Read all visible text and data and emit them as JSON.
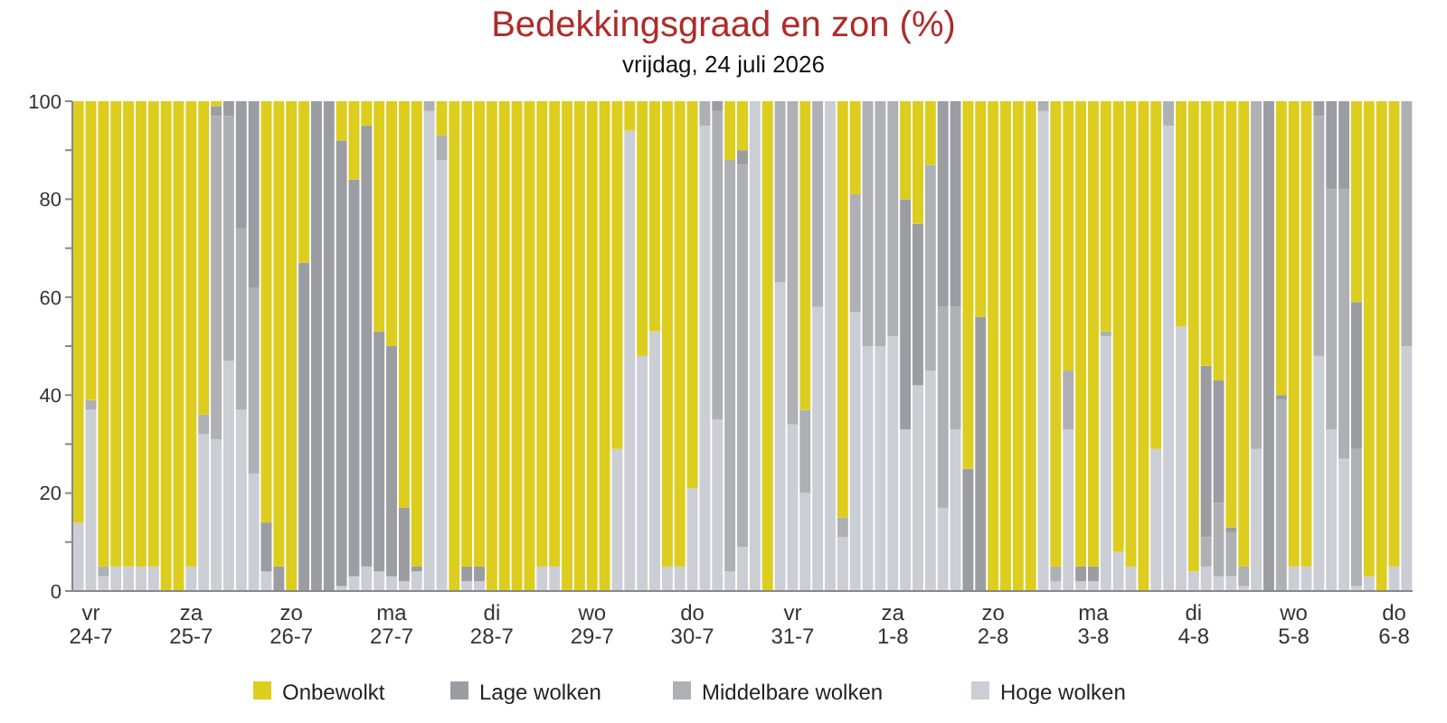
{
  "chart_data": {
    "type": "bar",
    "stacked": true,
    "title": "Bedekkingsgraad en zon (%)",
    "subtitle": "vrijdag, 24 juli 2026",
    "categories": [
      null,
      "vr 24-7",
      null,
      null,
      null,
      null,
      null,
      null,
      null,
      "za 25-7",
      null,
      null,
      null,
      null,
      null,
      null,
      null,
      "zo 26-7",
      null,
      null,
      null,
      null,
      null,
      null,
      null,
      "ma 27-7",
      null,
      null,
      null,
      null,
      null,
      null,
      null,
      "di 28-7",
      null,
      null,
      null,
      null,
      null,
      null,
      null,
      "wo 29-7",
      null,
      null,
      null,
      null,
      null,
      null,
      null,
      "do 30-7",
      null,
      null,
      null,
      null,
      null,
      null,
      null,
      "vr 31-7",
      null,
      null,
      null,
      null,
      null,
      null,
      null,
      "za 1-8",
      null,
      null,
      null,
      null,
      null,
      null,
      null,
      "zo 2-8",
      null,
      null,
      null,
      null,
      null,
      null,
      null,
      "ma 3-8",
      null,
      null,
      null,
      null,
      null,
      null,
      null,
      "di 4-8",
      null,
      null,
      null,
      null,
      null,
      null,
      null,
      "wo 5-8",
      null,
      null,
      null,
      null,
      null,
      null,
      null,
      "do 6-8",
      null
    ],
    "series": [
      {
        "name": "Hoge wolken",
        "color": "#cbced4",
        "values": [
          14,
          37,
          3,
          5,
          5,
          5,
          5,
          0,
          0,
          5,
          32,
          31,
          47,
          37,
          24,
          4,
          0,
          0,
          0,
          0,
          0,
          1,
          3,
          5,
          4,
          3,
          2,
          4,
          98,
          88,
          0,
          2,
          2,
          0,
          0,
          0,
          0,
          5,
          5,
          0,
          0,
          0,
          0,
          29,
          94,
          48,
          53,
          5,
          5,
          21,
          95,
          35,
          4,
          9,
          100,
          0,
          63,
          34,
          20,
          58,
          100,
          11,
          57,
          50,
          50,
          52,
          33,
          42,
          45,
          17,
          33,
          0,
          0,
          0,
          0,
          0,
          0,
          98,
          2,
          33,
          2,
          2,
          52,
          8,
          5,
          0,
          29,
          95,
          54,
          4,
          5,
          3,
          3,
          1,
          29,
          0,
          0,
          5,
          5,
          48,
          33,
          27,
          1,
          3,
          0,
          5,
          50
        ]
      },
      {
        "name": "Middelbare wolken",
        "color": "#aeb0b4",
        "values": [
          0,
          2,
          2,
          0,
          0,
          0,
          0,
          0,
          0,
          0,
          4,
          66,
          50,
          37,
          38,
          0,
          0,
          0,
          0,
          0,
          0,
          0,
          0,
          0,
          0,
          0,
          0,
          0,
          2,
          5,
          0,
          0,
          0,
          0,
          0,
          0,
          0,
          0,
          0,
          0,
          0,
          0,
          0,
          0,
          0,
          0,
          0,
          0,
          0,
          0,
          5,
          63,
          84,
          78,
          0,
          0,
          37,
          66,
          17,
          42,
          0,
          4,
          24,
          50,
          50,
          48,
          0,
          0,
          42,
          41,
          25,
          0,
          0,
          0,
          0,
          0,
          0,
          2,
          3,
          12,
          0,
          0,
          1,
          0,
          0,
          0,
          0,
          5,
          0,
          0,
          6,
          15,
          9,
          4,
          71,
          0,
          39,
          0,
          0,
          49,
          49,
          55,
          28,
          0,
          0,
          0,
          50
        ]
      },
      {
        "name": "Lage wolken",
        "color": "#9b9da2",
        "values": [
          0,
          0,
          0,
          0,
          0,
          0,
          0,
          0,
          0,
          0,
          0,
          2,
          3,
          26,
          38,
          10,
          5,
          0,
          67,
          100,
          100,
          91,
          81,
          90,
          49,
          47,
          15,
          1,
          0,
          0,
          0,
          3,
          3,
          0,
          0,
          0,
          0,
          0,
          0,
          0,
          0,
          0,
          0,
          0,
          0,
          0,
          0,
          0,
          0,
          0,
          0,
          2,
          0,
          3,
          0,
          0,
          0,
          0,
          0,
          0,
          0,
          0,
          0,
          0,
          0,
          0,
          47,
          33,
          0,
          42,
          42,
          25,
          56,
          0,
          0,
          0,
          0,
          0,
          0,
          0,
          3,
          3,
          0,
          0,
          0,
          0,
          0,
          0,
          0,
          0,
          35,
          25,
          1,
          0,
          0,
          100,
          1,
          0,
          0,
          3,
          18,
          18,
          30,
          0,
          0,
          0,
          0
        ]
      },
      {
        "name": "Onbewolkt",
        "color": "#dccd1e",
        "values": [
          86,
          61,
          95,
          95,
          95,
          95,
          95,
          100,
          100,
          95,
          64,
          1,
          0,
          0,
          0,
          86,
          95,
          100,
          33,
          0,
          0,
          8,
          16,
          5,
          47,
          50,
          83,
          95,
          0,
          7,
          100,
          95,
          95,
          100,
          100,
          100,
          100,
          95,
          95,
          100,
          100,
          100,
          100,
          71,
          6,
          52,
          47,
          95,
          95,
          79,
          0,
          0,
          12,
          10,
          0,
          100,
          0,
          0,
          63,
          0,
          0,
          85,
          19,
          0,
          0,
          0,
          20,
          25,
          13,
          0,
          0,
          75,
          44,
          100,
          100,
          100,
          100,
          0,
          95,
          55,
          95,
          95,
          47,
          92,
          95,
          100,
          71,
          0,
          46,
          96,
          54,
          57,
          87,
          95,
          0,
          0,
          60,
          95,
          95,
          0,
          0,
          0,
          41,
          97,
          100,
          95,
          0
        ]
      }
    ],
    "ylim": [
      0,
      100
    ],
    "yticks": [
      0,
      {
        "value": 10,
        "label": null
      },
      20,
      {
        "value": 30,
        "label": null
      },
      40,
      {
        "value": 50,
        "label": null
      },
      60,
      {
        "value": 70,
        "label": null
      },
      80,
      {
        "value": 90,
        "label": null
      },
      100
    ],
    "legend": "bottom"
  }
}
